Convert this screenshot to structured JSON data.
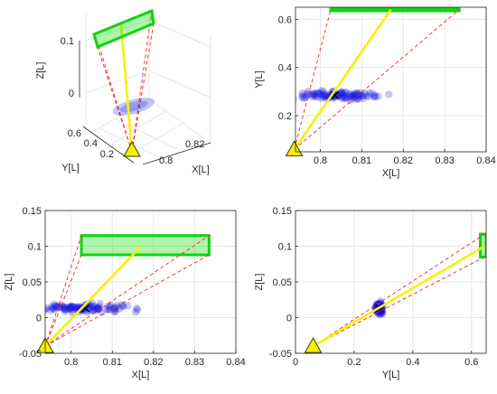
{
  "figure": {
    "colors": {
      "target_fill": "#7de87d",
      "target_edge": "#10d410",
      "beam": "#f3f300",
      "rays": "#ff2020",
      "samples": "#1919e1",
      "sensor": "#f7f000",
      "grid": "#e6e6e6"
    }
  },
  "chart_data": [
    {
      "id": "panel-3d",
      "type": "scatter",
      "view": "3d",
      "title": "",
      "xlabel": "X[L]",
      "ylabel": "Y[L]",
      "zlabel": "Z[L]",
      "xticks": [
        "0.8",
        "0.82"
      ],
      "yticks": [
        "0.2",
        "0.4",
        "0.6"
      ],
      "zticks": [
        "0",
        "0.1"
      ],
      "grid": true
    },
    {
      "id": "panel-xy",
      "type": "scatter",
      "title": "",
      "xlabel": "X[L]",
      "ylabel": "Y[L]",
      "xlim": [
        0.794,
        0.84
      ],
      "ylim": [
        0.05,
        0.65
      ],
      "xticks": [
        0.8,
        0.81,
        0.82,
        0.83,
        0.84
      ],
      "yticks": [
        0.2,
        0.4,
        0.6
      ],
      "xticklabels": [
        "0.8",
        "0.81",
        "0.82",
        "0.83",
        "0.84"
      ],
      "yticklabels": [
        "0.2",
        "0.4",
        "0.6"
      ],
      "grid": true,
      "sensor": [
        0.7937,
        0.06
      ],
      "beam_end": [
        0.817,
        0.64
      ],
      "target": {
        "x": [
          0.8025,
          0.8335
        ],
        "y": [
          0.635,
          0.645
        ]
      },
      "rays_to": [
        [
          0.8025,
          0.64
        ],
        [
          0.8335,
          0.64
        ]
      ],
      "samples": {
        "center": [
          0.8035,
          0.285
        ],
        "spread": [
          0.0075,
          0.012
        ]
      }
    },
    {
      "id": "panel-xz",
      "type": "scatter",
      "title": "",
      "xlabel": "X[L]",
      "ylabel": "Z[L]",
      "xlim": [
        0.7937,
        0.84
      ],
      "ylim": [
        -0.05,
        0.15
      ],
      "xticks": [
        0.8,
        0.81,
        0.82,
        0.83,
        0.84
      ],
      "yticks": [
        -0.05,
        0,
        0.05,
        0.1,
        0.15
      ],
      "xticklabels": [
        "0.8",
        "0.81",
        "0.82",
        "0.83",
        "0.84"
      ],
      "yticklabels": [
        "-0.05",
        "0",
        "0.05",
        "0.1",
        "0.15"
      ],
      "grid": true,
      "sensor": [
        0.7937,
        -0.04
      ],
      "beam_end": [
        0.817,
        0.1
      ],
      "target": {
        "x": [
          0.8025,
          0.8335
        ],
        "z": [
          0.088,
          0.115
        ]
      },
      "rays_to": [
        [
          0.8025,
          0.115
        ],
        [
          0.8025,
          0.088
        ],
        [
          0.8335,
          0.115
        ],
        [
          0.8335,
          0.088
        ]
      ],
      "samples": {
        "center": [
          0.8035,
          0.013
        ],
        "spread": [
          0.0075,
          0.0045
        ]
      }
    },
    {
      "id": "panel-yz",
      "type": "scatter",
      "title": "",
      "xlabel": "Y[L]",
      "ylabel": "Z[L]",
      "xlim": [
        0,
        0.65
      ],
      "ylim": [
        -0.05,
        0.15
      ],
      "xticks": [
        0,
        0.2,
        0.4,
        0.6
      ],
      "yticks": [
        -0.05,
        0,
        0.05,
        0.1,
        0.15
      ],
      "xticklabels": [
        "0",
        "0.2",
        "0.4",
        "0.6"
      ],
      "yticklabels": [
        "-0.05",
        "0",
        "0.05",
        "0.1",
        "0.15"
      ],
      "grid": true,
      "sensor": [
        0.06,
        -0.04
      ],
      "beam_end": [
        0.645,
        0.1
      ],
      "target": {
        "y": [
          0.63,
          0.65
        ],
        "z": [
          0.085,
          0.117
        ]
      },
      "rays_to": [
        [
          0.645,
          0.117
        ],
        [
          0.645,
          0.085
        ]
      ],
      "samples": {
        "center": [
          0.285,
          0.013
        ],
        "spread": [
          0.008,
          0.006
        ]
      }
    }
  ]
}
